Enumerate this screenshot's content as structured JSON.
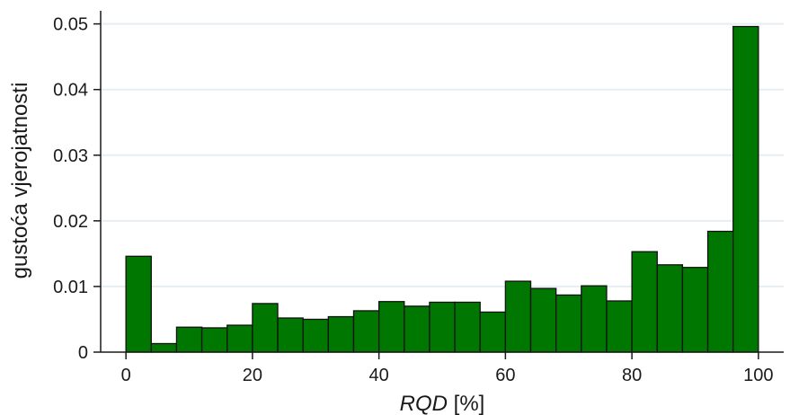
{
  "chart_data": {
    "type": "bar",
    "title": "",
    "xlabel_italic": "RQD",
    "xlabel_rest": " [%]",
    "ylabel": "gustoća vjerojatnosti",
    "xlim": [
      -4,
      104
    ],
    "ylim": [
      0,
      0.052
    ],
    "xticks": [
      0,
      20,
      40,
      60,
      80,
      100
    ],
    "yticks": [
      0,
      0.01,
      0.02,
      0.03,
      0.04,
      0.05
    ],
    "ytick_labels": [
      "0",
      "0.01",
      "0.02",
      "0.03",
      "0.04",
      "0.05"
    ],
    "grid": "horizontal",
    "bin_width": 4,
    "bin_starts": [
      0,
      4,
      8,
      12,
      16,
      20,
      24,
      28,
      32,
      36,
      40,
      44,
      48,
      52,
      56,
      60,
      64,
      68,
      72,
      76,
      80,
      84,
      88,
      92,
      96
    ],
    "values": [
      0.0146,
      0.0013,
      0.0038,
      0.0037,
      0.0041,
      0.0074,
      0.0052,
      0.005,
      0.0054,
      0.0063,
      0.0077,
      0.007,
      0.0076,
      0.0076,
      0.0061,
      0.0108,
      0.0097,
      0.0087,
      0.0101,
      0.0078,
      0.0153,
      0.0133,
      0.0129,
      0.0184,
      0.0496
    ],
    "bar_color": "#007700",
    "bar_edge_color": "#111111",
    "grid_color": "#e6eef2"
  }
}
